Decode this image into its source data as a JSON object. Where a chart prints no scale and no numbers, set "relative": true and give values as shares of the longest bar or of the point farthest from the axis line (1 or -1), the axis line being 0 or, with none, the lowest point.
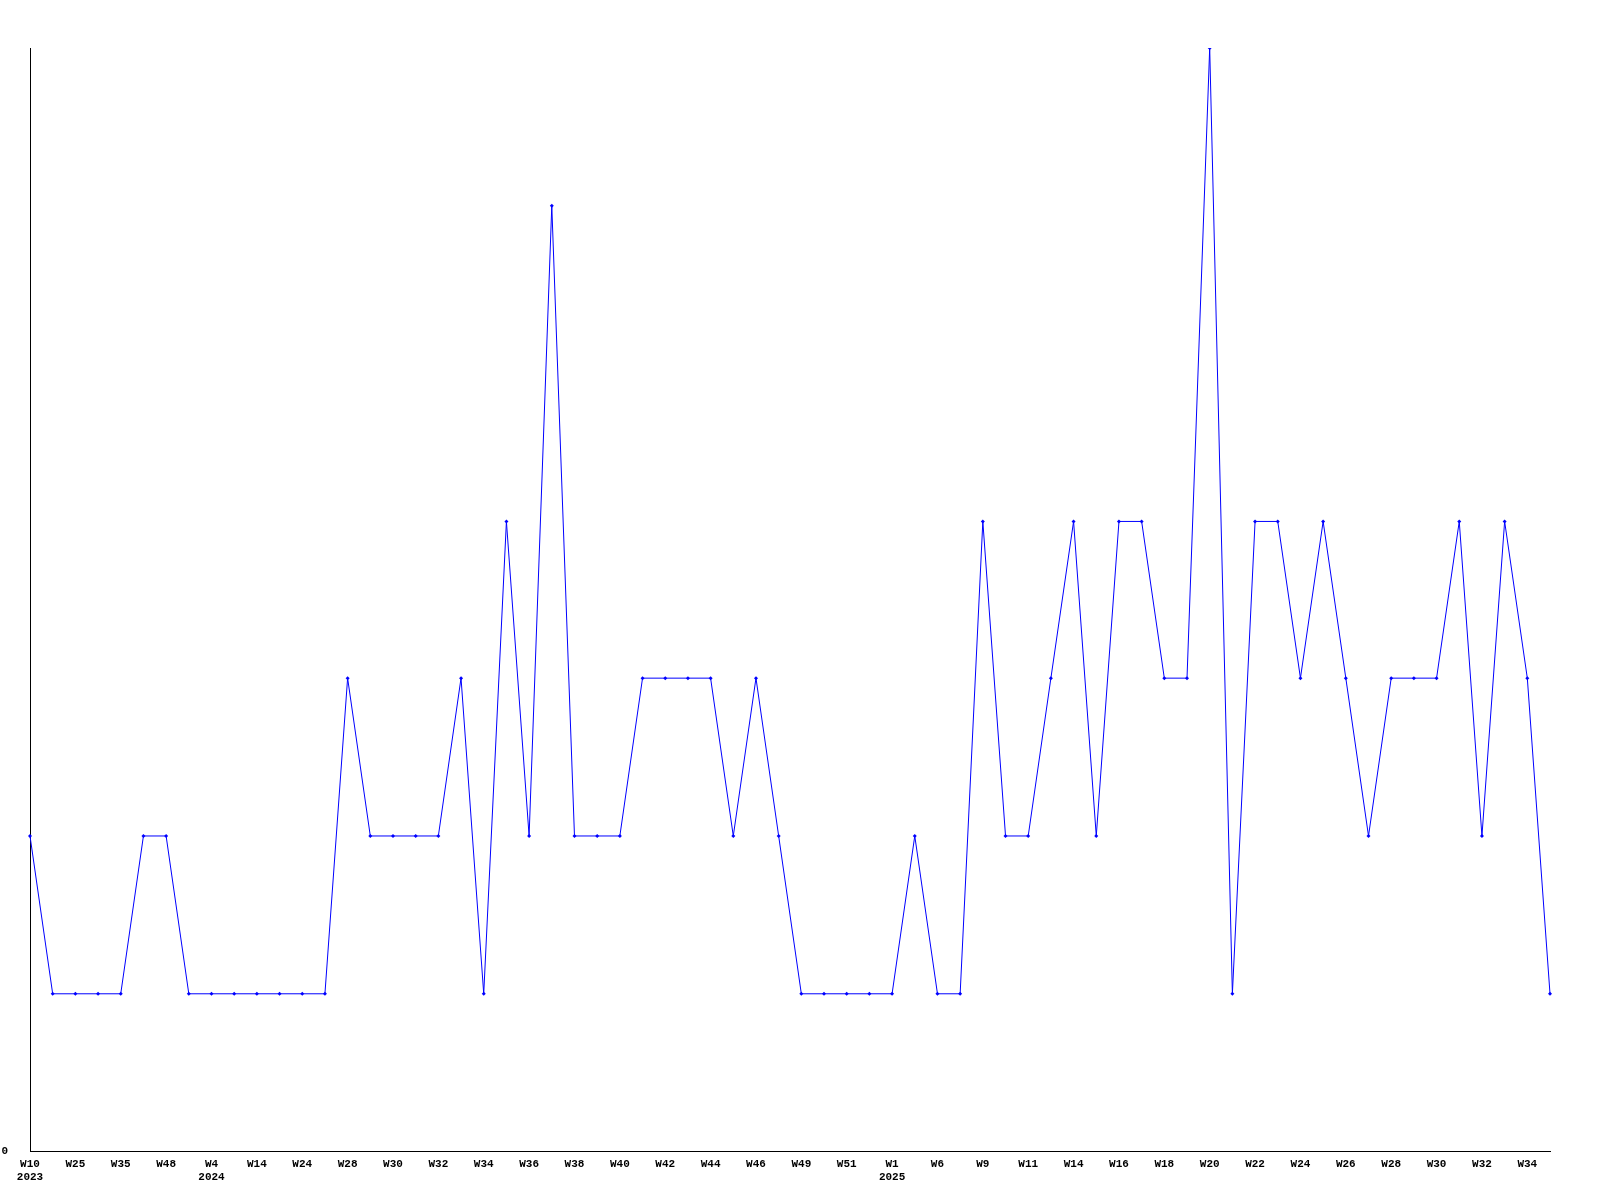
{
  "chart_data": {
    "type": "line",
    "relative": true,
    "color": "#0000ff",
    "marker": "diamond",
    "grid": false,
    "legend": false,
    "annotations": [
      "0"
    ],
    "categories": [
      "W10\n2023",
      null,
      "W25",
      null,
      "W35",
      null,
      "W48",
      null,
      "W4\n2024",
      null,
      "W14",
      null,
      "W24",
      null,
      "W28",
      null,
      "W30",
      null,
      "W32",
      null,
      "W34",
      null,
      "W36",
      null,
      "W38",
      null,
      "W40",
      null,
      "W42",
      null,
      "W44",
      null,
      "W46",
      null,
      "W49",
      null,
      "W51",
      null,
      "W1\n2025",
      null,
      "W6",
      null,
      "W9",
      null,
      "W11",
      null,
      "W14",
      null,
      "W16",
      null,
      "W18",
      null,
      "W20",
      null,
      "W22",
      null,
      "W24",
      null,
      "W26",
      null,
      "W28",
      null,
      "W30",
      null,
      "W32",
      null,
      "W34",
      null
    ],
    "values": [
      0.286,
      0.143,
      0.143,
      0.143,
      0.143,
      0.286,
      0.286,
      0.143,
      0.143,
      0.143,
      0.143,
      0.143,
      0.143,
      0.143,
      0.429,
      0.286,
      0.286,
      0.286,
      0.286,
      0.429,
      0.143,
      0.571,
      0.286,
      0.857,
      0.286,
      0.286,
      0.286,
      0.429,
      0.429,
      0.429,
      0.429,
      0.286,
      0.429,
      0.286,
      0.143,
      0.143,
      0.143,
      0.143,
      0.143,
      0.286,
      0.143,
      0.143,
      0.571,
      0.286,
      0.286,
      0.429,
      0.571,
      0.286,
      0.571,
      0.571,
      0.429,
      0.429,
      1,
      0.143,
      0.571,
      0.571,
      0.429,
      0.571,
      0.429,
      0.286,
      0.429,
      0.429,
      0.429,
      0.571,
      0.286,
      0.571,
      0.429,
      0.143
    ]
  }
}
